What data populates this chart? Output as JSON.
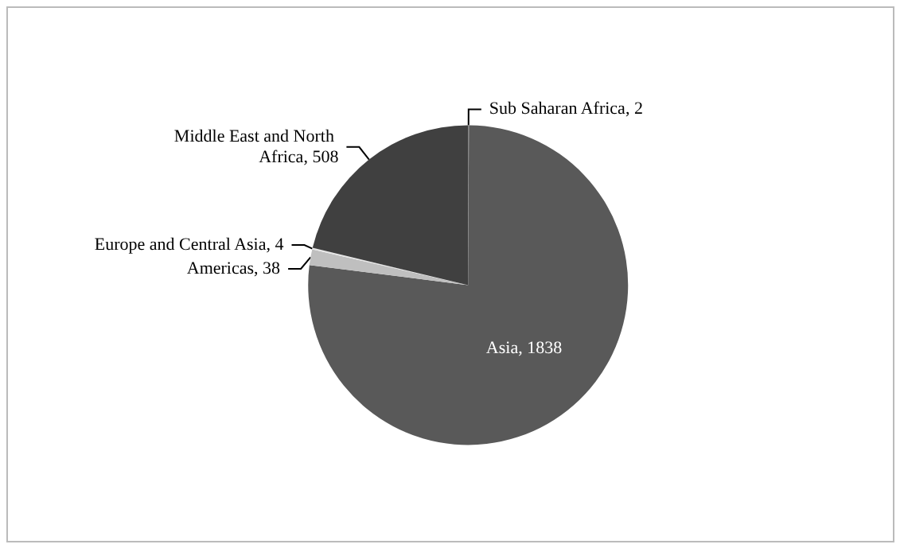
{
  "chart_data": {
    "type": "pie",
    "categories": [
      "Sub Saharan Africa",
      "Asia",
      "Americas",
      "Europe and Central Asia",
      "Middle East and North Africa"
    ],
    "values": [
      2,
      1838,
      38,
      4,
      508
    ],
    "value_labels": [
      "2",
      "1838",
      "38",
      "4",
      "508"
    ],
    "colors": [
      "#7f7f7f",
      "#595959",
      "#bfbfbf",
      "#e6e6e6",
      "#404040"
    ],
    "legend": false
  }
}
